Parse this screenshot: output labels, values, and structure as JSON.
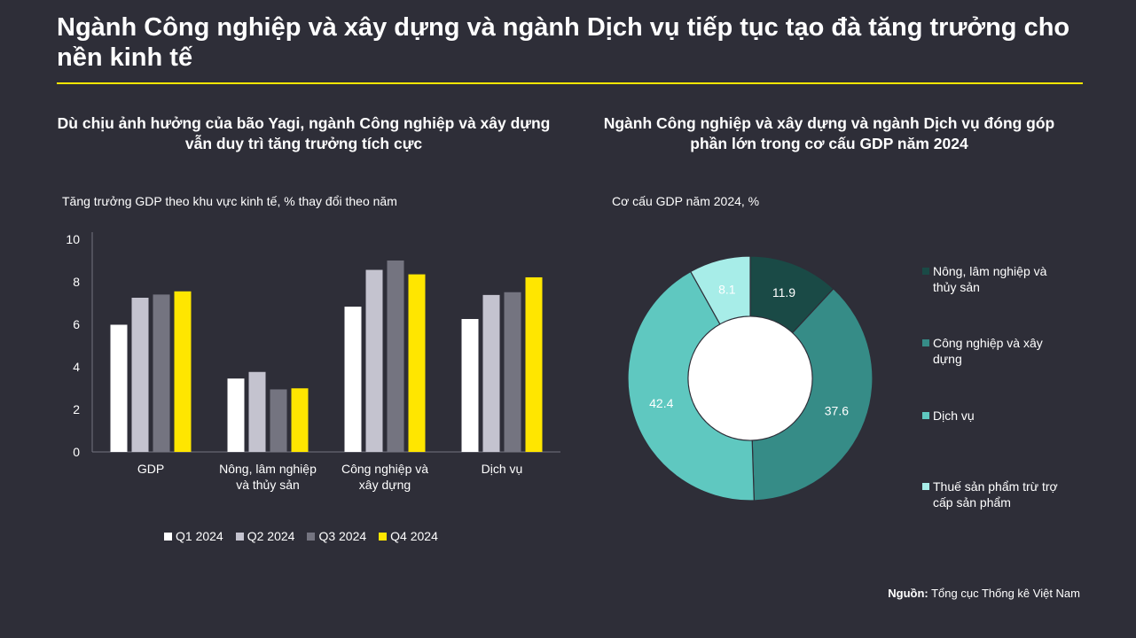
{
  "page": {
    "title": "Ngành Công nghiệp và xây dựng và ngành Dịch vụ tiếp tục tạo đà tăng trưởng cho nền kinh tế",
    "accent_color": "#ffe600",
    "background_color": "#2e2e38"
  },
  "left_panel": {
    "title": "Dù chịu ảnh hưởng của bão Yagi, ngành Công nghiệp và xây dựng vẫn duy trì tăng trưởng tích cực",
    "subtitle": "Tăng trưởng GDP theo khu vực kinh tế, % thay đổi theo năm"
  },
  "right_panel": {
    "title": "Ngành Công nghiệp và xây dựng và ngành Dịch vụ đóng góp phần lớn trong cơ cấu GDP năm 2024",
    "subtitle": "Cơ cấu GDP năm 2024, %"
  },
  "source": {
    "label": "Nguồn:",
    "text": " Tổng cục Thống kê Việt Nam"
  },
  "chart_data": [
    {
      "type": "bar",
      "categories": [
        "GDP",
        "Nông, lâm nghiệp và thủy sản",
        "Công nghiệp và xây dựng",
        "Dịch vụ"
      ],
      "category_lines": [
        [
          "GDP"
        ],
        [
          "Nông, lâm nghiệp",
          "và thủy sản"
        ],
        [
          "Công nghiệp và",
          "xây dựng"
        ],
        [
          "Dịch vụ"
        ]
      ],
      "series": [
        {
          "name": "Q1 2024",
          "color": "#ffffff",
          "values": [
            5.98,
            3.45,
            6.83,
            6.25
          ]
        },
        {
          "name": "Q2 2024",
          "color": "#c4c3cf",
          "values": [
            7.25,
            3.76,
            8.56,
            7.38
          ]
        },
        {
          "name": "Q3 2024",
          "color": "#747480",
          "values": [
            7.4,
            2.94,
            9.0,
            7.51
          ]
        },
        {
          "name": "Q4 2024",
          "color": "#ffe600",
          "values": [
            7.55,
            2.99,
            8.35,
            8.21
          ]
        }
      ],
      "yticks": [
        0,
        2,
        4,
        6,
        8,
        10
      ],
      "ylim": [
        0,
        10
      ],
      "legend_position": "bottom",
      "grid": false
    },
    {
      "type": "pie",
      "donut": true,
      "slices": [
        {
          "label": "Nông, lâm nghiệp và thủy sản",
          "label_lines": [
            "Nông, lâm nghiệp và",
            "thủy sản"
          ],
          "value": 11.9,
          "display": "11.9",
          "color": "#1a4a46"
        },
        {
          "label": "Công nghiệp và xây dựng",
          "label_lines": [
            "Công nghiệp và xây",
            "dựng"
          ],
          "value": 37.6,
          "display": "37.6",
          "color": "#368c87"
        },
        {
          "label": "Dịch vụ",
          "label_lines": [
            "Dịch vụ"
          ],
          "value": 42.4,
          "display": "42.4",
          "color": "#5fc8c0"
        },
        {
          "label": "Thuế sản phẩm trừ trợ cấp sản phẩm",
          "label_lines": [
            "Thuế sản phẩm trừ trợ",
            "cấp sản phẩm"
          ],
          "value": 8.1,
          "display": "8.1",
          "color": "#a7ede8"
        }
      ],
      "legend_position": "right"
    }
  ]
}
